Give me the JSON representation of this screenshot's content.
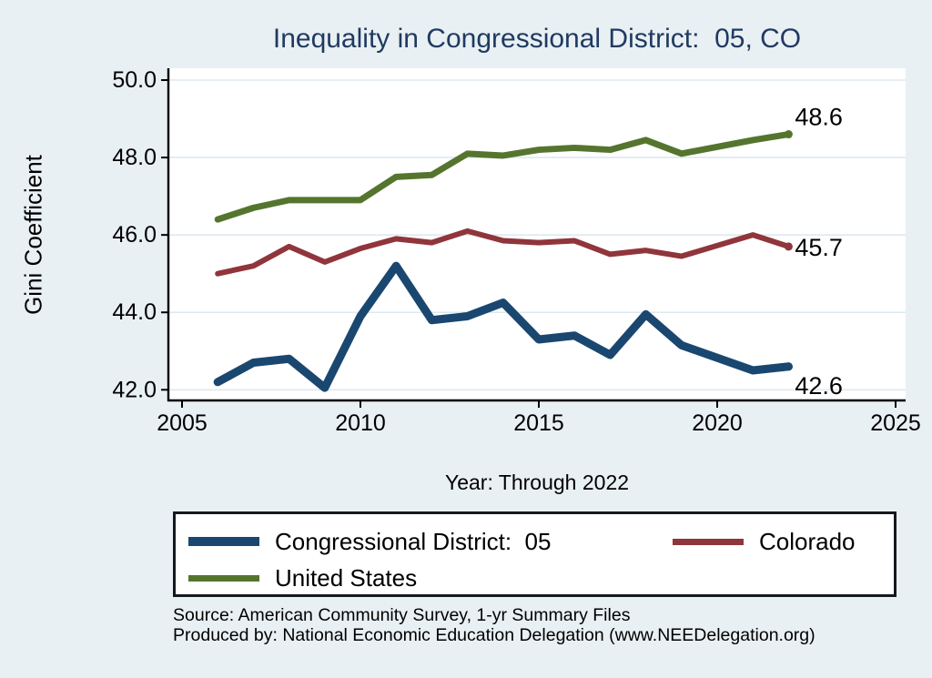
{
  "title": "Inequality in Congressional District:  05, CO",
  "chart_data": {
    "type": "line",
    "title": "Inequality in Congressional District:  05, CO",
    "xlabel": "Year: Through 2022",
    "ylabel": "Gini Coefficient",
    "x": [
      2006,
      2007,
      2008,
      2009,
      2010,
      2011,
      2012,
      2013,
      2014,
      2015,
      2016,
      2017,
      2018,
      2019,
      2021,
      2022
    ],
    "series": [
      {
        "name": "Congressional District:  05",
        "color": "#1a476f",
        "line_width": 9,
        "values": [
          42.2,
          42.7,
          42.8,
          42.05,
          43.9,
          45.2,
          43.8,
          43.9,
          44.25,
          43.3,
          43.4,
          42.9,
          43.95,
          43.15,
          42.5,
          42.6
        ],
        "end_label": "42.6"
      },
      {
        "name": "Colorado",
        "color": "#90353b",
        "line_width": 6,
        "values": [
          45.0,
          45.2,
          45.7,
          45.3,
          45.65,
          45.9,
          45.8,
          46.1,
          45.85,
          45.8,
          45.85,
          45.5,
          45.6,
          45.45,
          46.0,
          45.7
        ],
        "end_label": "45.7"
      },
      {
        "name": "United States",
        "color": "#55752f",
        "line_width": 7,
        "values": [
          46.4,
          46.7,
          46.9,
          46.9,
          46.9,
          47.5,
          47.55,
          48.1,
          48.05,
          48.2,
          48.25,
          48.2,
          48.45,
          48.1,
          48.45,
          48.6
        ],
        "end_label": "48.6"
      }
    ],
    "x_ticks": [
      2005,
      2010,
      2015,
      2020,
      2025
    ],
    "x_tick_labels": [
      "2005",
      "2010",
      "2015",
      "2020",
      "2025"
    ],
    "y_ticks": [
      42,
      44,
      46,
      48,
      50
    ],
    "y_tick_labels": [
      "42.0",
      "44.0",
      "46.0",
      "48.0",
      "50.0"
    ],
    "xlim": [
      2004.6,
      2025.3
    ],
    "ylim": [
      41.7,
      50.3
    ],
    "grid": true,
    "legend_position": "bottom"
  },
  "colors": {
    "background": "#e9f0f3",
    "plot_background": "#ffffff",
    "gridline": "#dde9f1",
    "axis": "#000000",
    "title": "#203a61",
    "district_line": "#1a476f",
    "colorado_line": "#90353b",
    "us_line": "#55752f"
  },
  "source_line1": "Source: American Community Survey, 1-yr Summary Files",
  "source_line2": "Produced by: National Economic Education Delegation (www.NEEDelegation.org)"
}
